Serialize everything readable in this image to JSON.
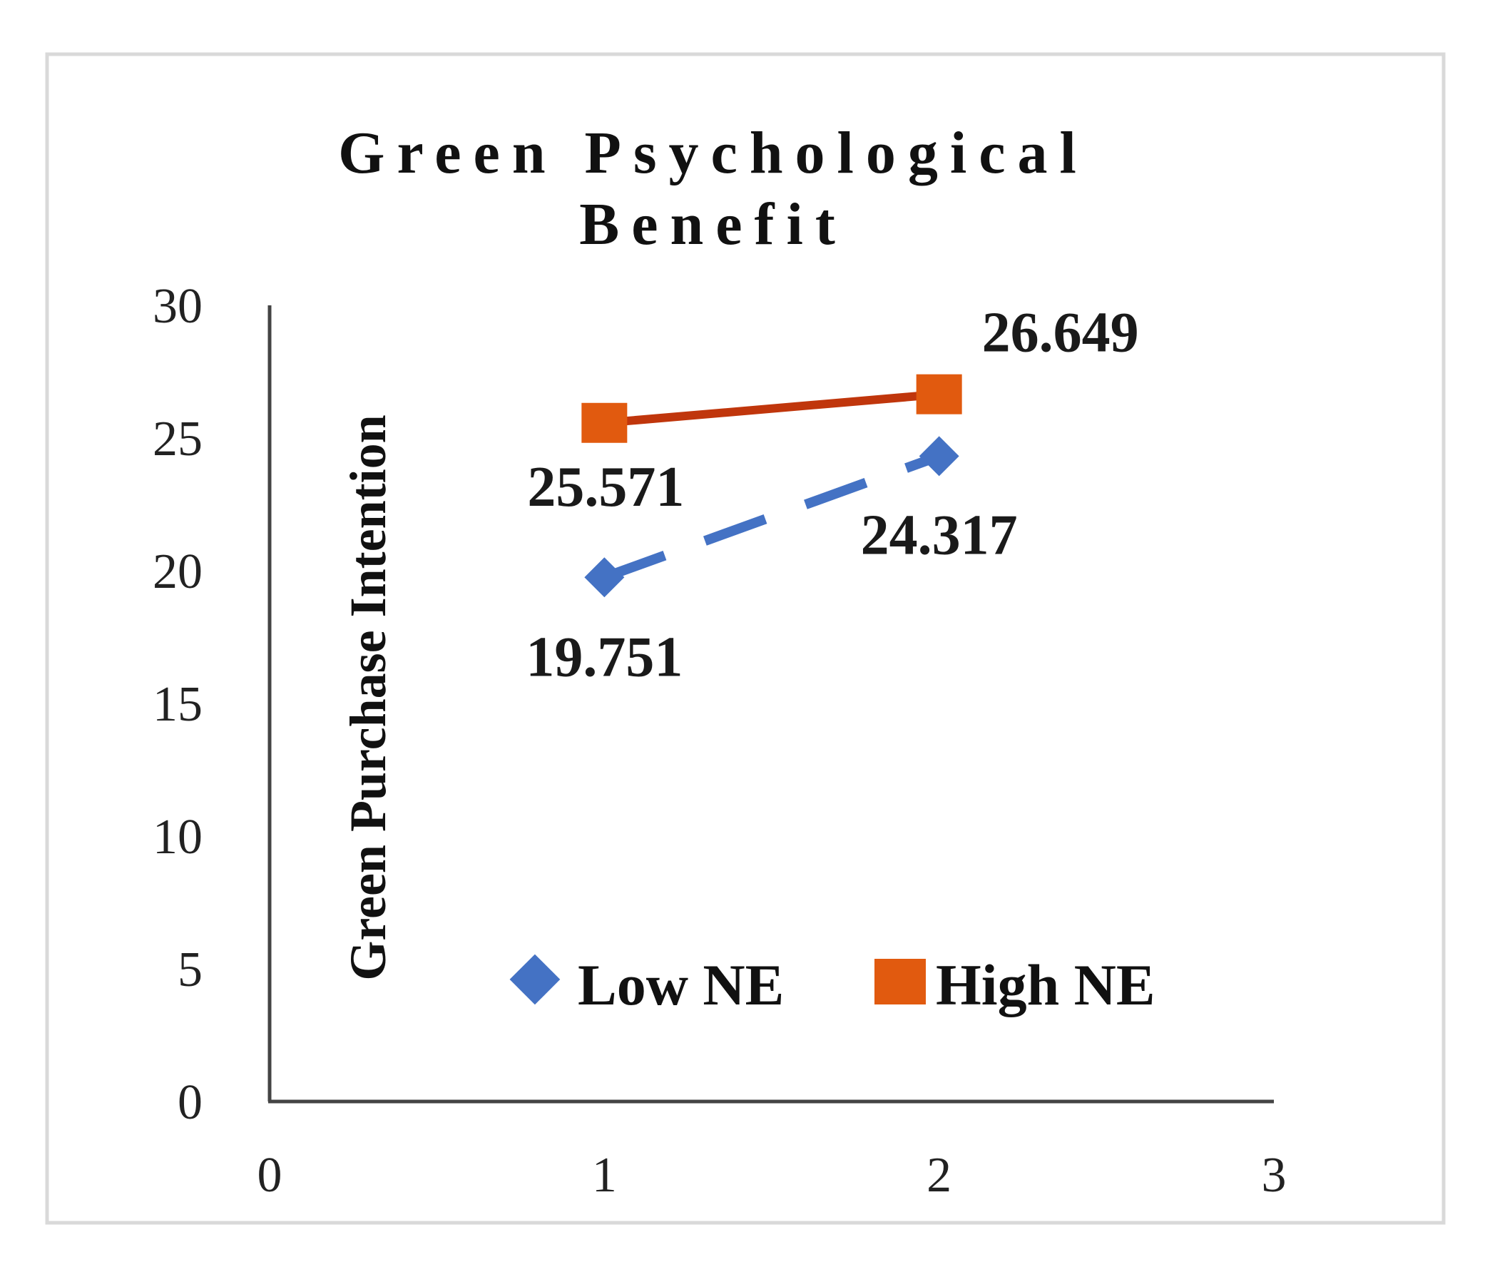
{
  "chart_data": {
    "type": "line",
    "title_lines": [
      "Green Psychological",
      "Benefit"
    ],
    "xlabel": "",
    "ylabel": "Green Purchase Intention",
    "xlim": [
      0,
      3
    ],
    "ylim": [
      0,
      30
    ],
    "x_ticks": [
      "0",
      "1",
      "2",
      "3"
    ],
    "y_ticks": [
      "0",
      "5",
      "10",
      "15",
      "20",
      "25",
      "30"
    ],
    "grid": false,
    "legend_position": "bottom-inside",
    "series": [
      {
        "name": "Low NE",
        "color": "#4472c4",
        "line_style": "dashed",
        "marker": "diamond",
        "x": [
          1,
          2
        ],
        "values": [
          19.751,
          24.317
        ],
        "labels": [
          "19.751",
          "24.317"
        ]
      },
      {
        "name": "High NE",
        "color": "#c0360c",
        "marker_color": "#e15a0f",
        "line_style": "solid",
        "marker": "square",
        "x": [
          1,
          2
        ],
        "values": [
          25.571,
          26.649
        ],
        "labels": [
          "25.571",
          "26.649"
        ]
      }
    ]
  }
}
